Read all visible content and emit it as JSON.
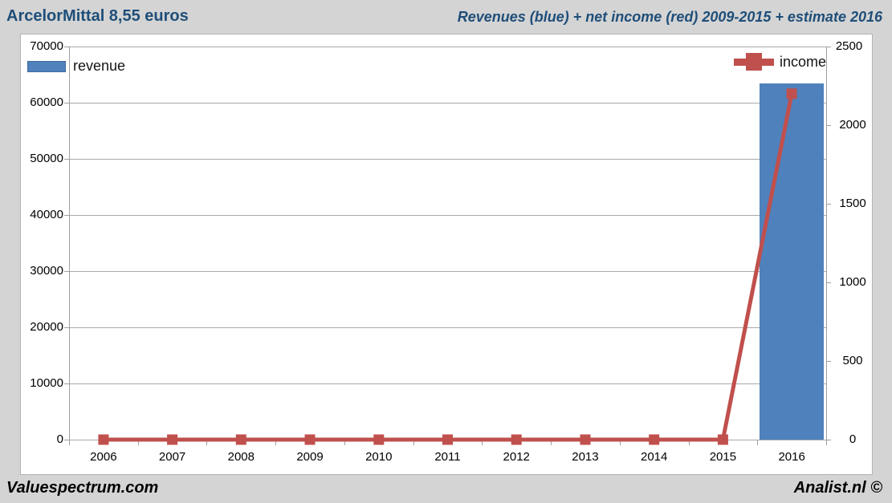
{
  "header": {
    "left_title": "ArcelorMittal 8,55 euros",
    "right_title": "Revenues (blue) + net income (red) 2009-2015 + estimate 2016"
  },
  "footer": {
    "left_brand": "Valuespectrum.com",
    "right_brand": "Analist.nl ©"
  },
  "legend": {
    "revenue": "revenue",
    "income": "income"
  },
  "colors": {
    "page_bg": "#d4d4d4",
    "chart_bg": "#ffffff",
    "title_text": "#1f4e79",
    "grid": "#a9a9a9",
    "axis_text": "#000000",
    "revenue_blue": "#4f81bd",
    "income_red": "#c0504d"
  },
  "axes_labels": {
    "left": [
      "70000",
      "60000",
      "50000",
      "40000",
      "30000",
      "20000",
      "10000",
      "0"
    ],
    "right": [
      "2500",
      "2000",
      "1500",
      "1000",
      "500",
      "0"
    ],
    "x": [
      "2006",
      "2007",
      "2008",
      "2009",
      "2010",
      "2011",
      "2012",
      "2013",
      "2014",
      "2015",
      "2016"
    ]
  },
  "chart_data": {
    "type": "bar",
    "subtype": "combo bar + line, dual y-axes",
    "title": "Revenues (blue) + net income (red) 2009-2015 + estimate 2016",
    "categories": [
      "2006",
      "2007",
      "2008",
      "2009",
      "2010",
      "2011",
      "2012",
      "2013",
      "2014",
      "2015",
      "2016"
    ],
    "series": [
      {
        "name": "revenue",
        "type": "bar",
        "axis": "left",
        "color": "#4f81bd",
        "values": [
          null,
          null,
          null,
          null,
          null,
          null,
          null,
          null,
          null,
          null,
          63500
        ]
      },
      {
        "name": "income",
        "type": "line",
        "axis": "right",
        "color": "#c0504d",
        "marker": "square",
        "values": [
          0,
          0,
          0,
          0,
          0,
          0,
          0,
          0,
          0,
          0,
          2200
        ]
      }
    ],
    "left_axis": {
      "label": "",
      "lim": [
        0,
        70000
      ],
      "tick_step": 10000
    },
    "right_axis": {
      "label": "",
      "lim": [
        0,
        2500
      ],
      "tick_step": 500
    },
    "grid": true,
    "legend_positions": {
      "revenue": "top-left",
      "income": "top-right"
    }
  }
}
